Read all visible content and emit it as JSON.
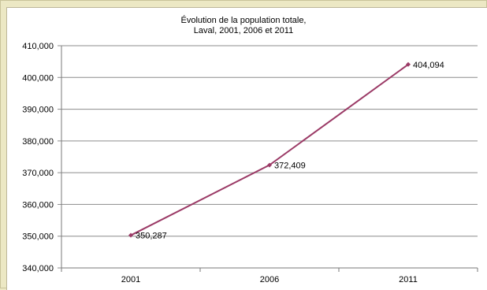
{
  "chart_data": {
    "type": "line",
    "title_lines": [
      "Évolution de la population totale,",
      "Laval, 2001, 2006 et 2011"
    ],
    "categories": [
      "2001",
      "2006",
      "2011"
    ],
    "series": [
      {
        "values": [
          350287,
          372409,
          404094
        ],
        "labels": [
          "350,287",
          "372,409",
          "404,094"
        ]
      }
    ],
    "y_ticks": [
      "340,000",
      "350,000",
      "360,000",
      "370,000",
      "380,000",
      "390,000",
      "400,000",
      "410,000"
    ],
    "ylim": [
      340000,
      410000
    ],
    "y_step": 10000,
    "grid": true,
    "legend": "none",
    "xlabel": "",
    "ylabel": "",
    "colors": {
      "line": "#9b3a66",
      "grid": "#8c8c8c",
      "background": "#ece8c4"
    }
  }
}
